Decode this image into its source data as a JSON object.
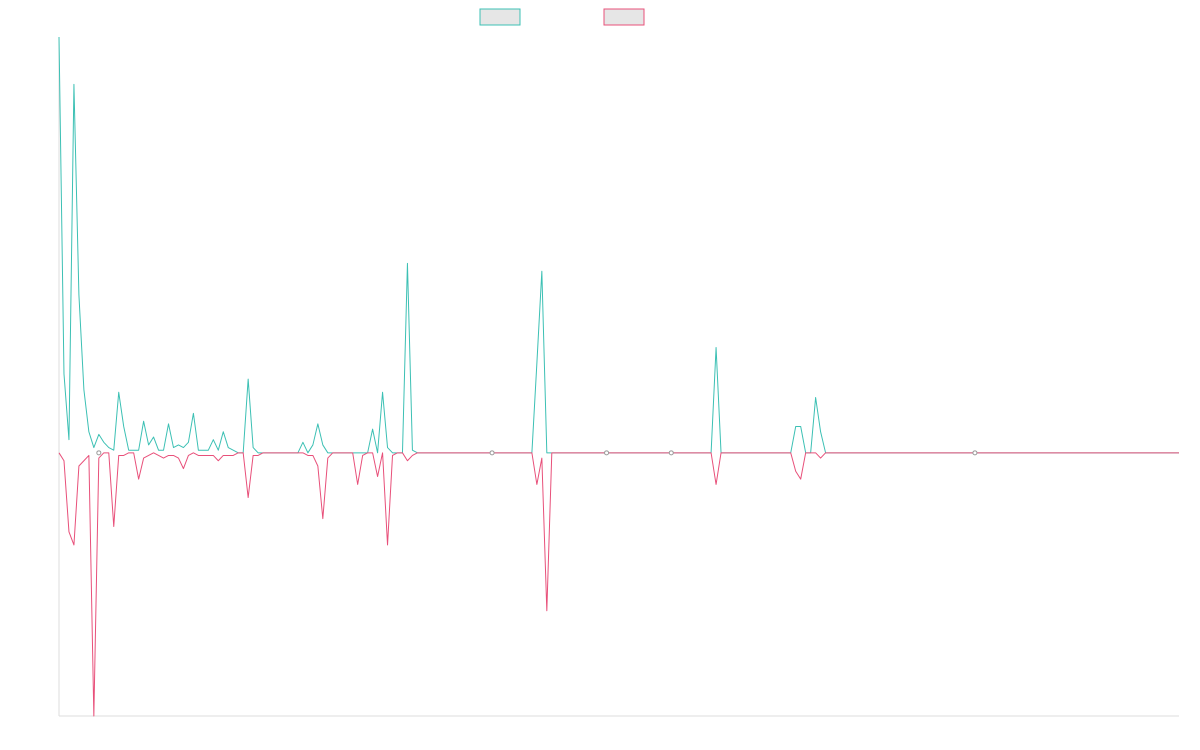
{
  "chart_data": {
    "type": "line",
    "title": "",
    "xlabel": "",
    "ylabel": "",
    "ylim": [
      -100,
      158
    ],
    "grid": false,
    "legend_position": "top-center",
    "x_count": 226,
    "series": [
      {
        "color": "#3cc0b4",
        "spikes": [
          [
            0,
            158
          ],
          [
            1,
            30
          ],
          [
            2,
            5
          ],
          [
            3,
            140
          ],
          [
            4,
            60
          ],
          [
            5,
            24
          ],
          [
            6,
            8
          ],
          [
            7,
            2
          ],
          [
            8,
            7
          ],
          [
            9,
            4
          ],
          [
            10,
            2
          ],
          [
            11,
            1
          ],
          [
            12,
            23
          ],
          [
            13,
            10
          ],
          [
            14,
            1
          ],
          [
            15,
            1
          ],
          [
            16,
            1
          ],
          [
            17,
            12
          ],
          [
            18,
            3
          ],
          [
            19,
            6
          ],
          [
            20,
            1
          ],
          [
            21,
            1
          ],
          [
            22,
            11
          ],
          [
            23,
            2
          ],
          [
            24,
            3
          ],
          [
            25,
            2
          ],
          [
            26,
            4
          ],
          [
            27,
            15
          ],
          [
            28,
            1
          ],
          [
            29,
            1
          ],
          [
            30,
            1
          ],
          [
            31,
            5
          ],
          [
            32,
            1
          ],
          [
            33,
            8
          ],
          [
            34,
            2
          ],
          [
            35,
            1
          ],
          [
            38,
            28
          ],
          [
            39,
            2
          ],
          [
            49,
            4
          ],
          [
            51,
            3
          ],
          [
            52,
            11
          ],
          [
            53,
            3
          ],
          [
            63,
            9
          ],
          [
            65,
            23
          ],
          [
            66,
            2
          ],
          [
            70,
            72
          ],
          [
            71,
            1
          ],
          [
            96,
            34
          ],
          [
            97,
            69
          ],
          [
            132,
            40
          ],
          [
            148,
            10
          ],
          [
            149,
            10
          ],
          [
            152,
            21
          ],
          [
            153,
            8
          ]
        ]
      },
      {
        "color": "#e8507a",
        "spikes": [
          [
            1,
            -3
          ],
          [
            2,
            -30
          ],
          [
            3,
            -35
          ],
          [
            4,
            -5
          ],
          [
            5,
            -3
          ],
          [
            6,
            -1
          ],
          [
            7,
            -100
          ],
          [
            8,
            -2
          ],
          [
            11,
            -28
          ],
          [
            12,
            -1
          ],
          [
            13,
            -1
          ],
          [
            16,
            -10
          ],
          [
            17,
            -2
          ],
          [
            18,
            -1
          ],
          [
            20,
            -1
          ],
          [
            21,
            -2
          ],
          [
            22,
            -1
          ],
          [
            23,
            -1
          ],
          [
            24,
            -2
          ],
          [
            25,
            -6
          ],
          [
            26,
            -1
          ],
          [
            28,
            -1
          ],
          [
            29,
            -1
          ],
          [
            30,
            -1
          ],
          [
            31,
            -1
          ],
          [
            32,
            -3
          ],
          [
            33,
            -1
          ],
          [
            34,
            -1
          ],
          [
            35,
            -1
          ],
          [
            38,
            -17
          ],
          [
            39,
            -1
          ],
          [
            40,
            -1
          ],
          [
            50,
            -1
          ],
          [
            51,
            -1
          ],
          [
            52,
            -5
          ],
          [
            53,
            -25
          ],
          [
            54,
            -2
          ],
          [
            60,
            -12
          ],
          [
            61,
            -1
          ],
          [
            64,
            -9
          ],
          [
            66,
            -35
          ],
          [
            67,
            -1
          ],
          [
            70,
            -3
          ],
          [
            71,
            -1
          ],
          [
            96,
            -12
          ],
          [
            97,
            -2
          ],
          [
            98,
            -60
          ],
          [
            132,
            -12
          ],
          [
            148,
            -7
          ],
          [
            149,
            -10
          ],
          [
            153,
            -2
          ]
        ]
      }
    ]
  }
}
